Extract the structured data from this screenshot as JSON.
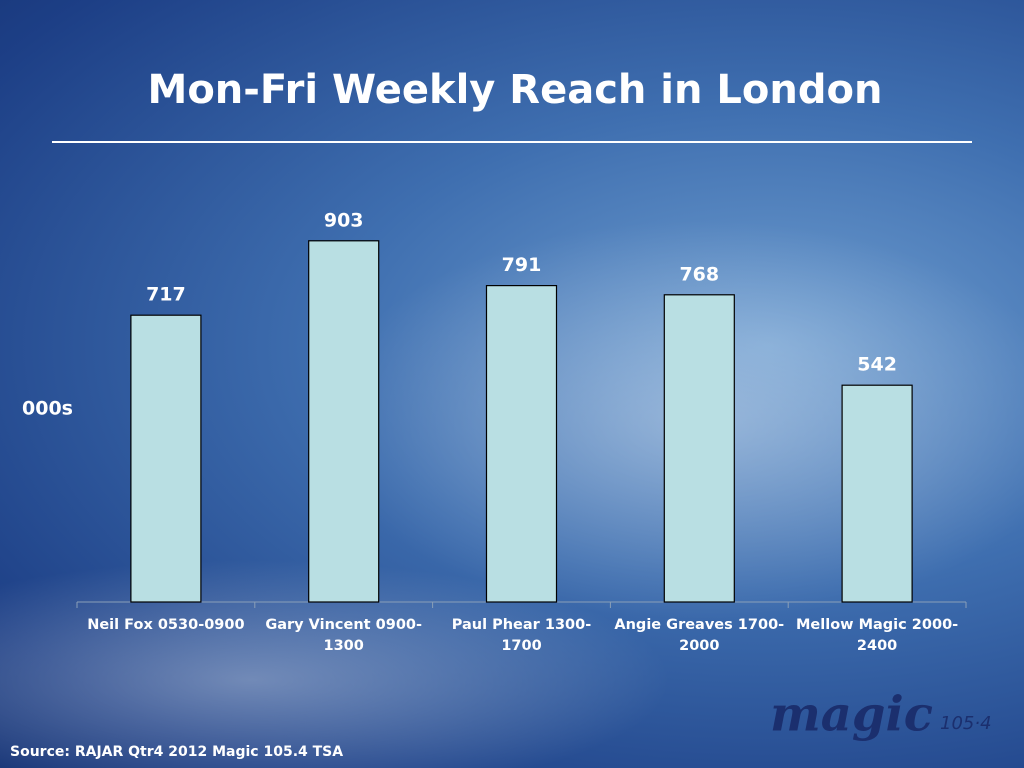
{
  "chart_data": {
    "type": "bar",
    "title": "Mon-Fri Weekly Reach in London",
    "y_label": "000s",
    "categories": [
      "Neil Fox 0530-0900",
      "Gary Vincent 0900-1300",
      "Paul Phear 1300-1700",
      "Angie Greaves 1700-2000",
      "Mellow Magic 2000-2400"
    ],
    "values": [
      717,
      903,
      791,
      768,
      542
    ],
    "color": "#b9dfe3",
    "ylim": [
      0,
      1000
    ],
    "source": "Source: RAJAR Qtr4 2012 Magic 105.4 TSA",
    "logo": {
      "name": "magic",
      "frequency": "105·4"
    }
  }
}
